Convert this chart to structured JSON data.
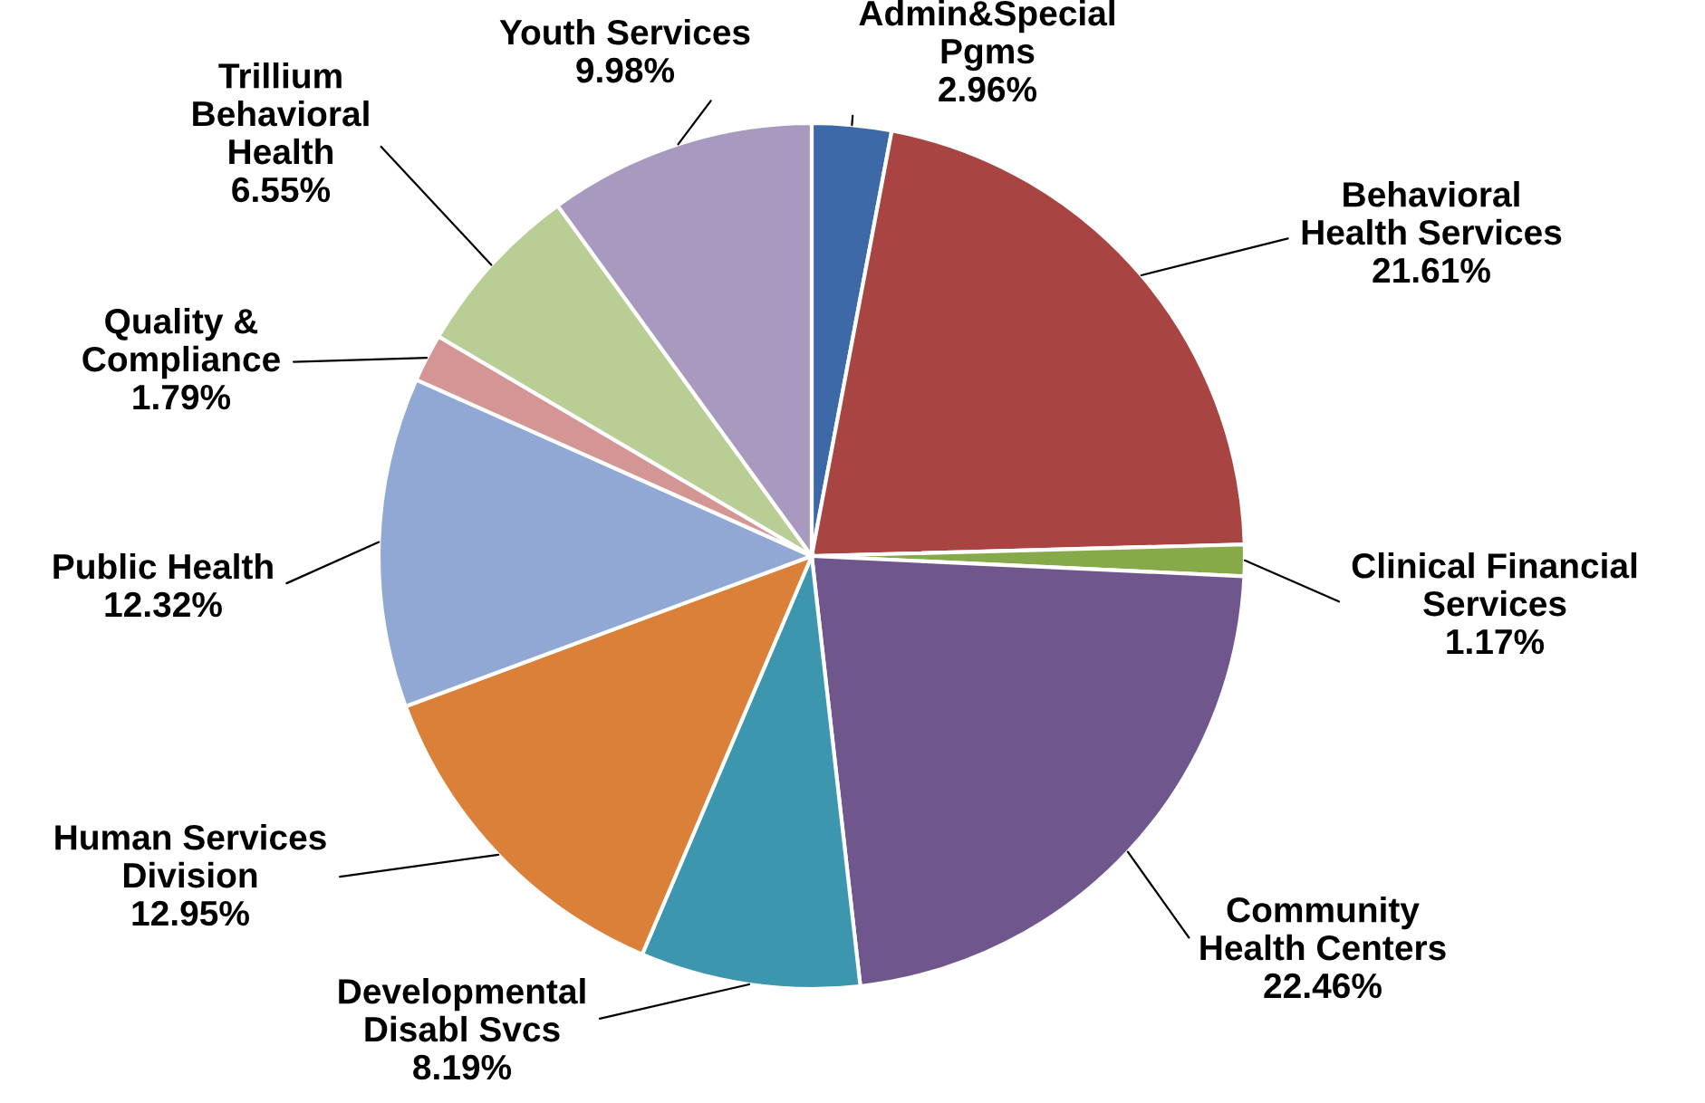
{
  "chart_data": {
    "type": "pie",
    "categories": [
      "Admin&Special\nPgms",
      "Behavioral\nHealth Services",
      "Clinical Financial\nServices",
      "Community\nHealth Centers",
      "Developmental\nDisabl Svcs",
      "Human Services\nDivision",
      "Public Health",
      "Quality &\nCompliance",
      "Trillium\nBehavioral\nHealth",
      "Youth Services"
    ],
    "values": [
      2.96,
      21.61,
      1.17,
      22.46,
      8.19,
      12.95,
      12.32,
      1.79,
      6.55,
      9.98
    ],
    "value_labels": [
      "2.96%",
      "21.61%",
      "1.17%",
      "22.46%",
      "8.19%",
      "12.95%",
      "12.32%",
      "1.79%",
      "6.55%",
      "9.98%"
    ],
    "colors": [
      "#3d6aa6",
      "#a84442",
      "#86a94a",
      "#6f578e",
      "#3c97ae",
      "#db8038",
      "#91a8d4",
      "#d49694",
      "#b9ce94",
      "#a899bf"
    ],
    "legend": false
  }
}
